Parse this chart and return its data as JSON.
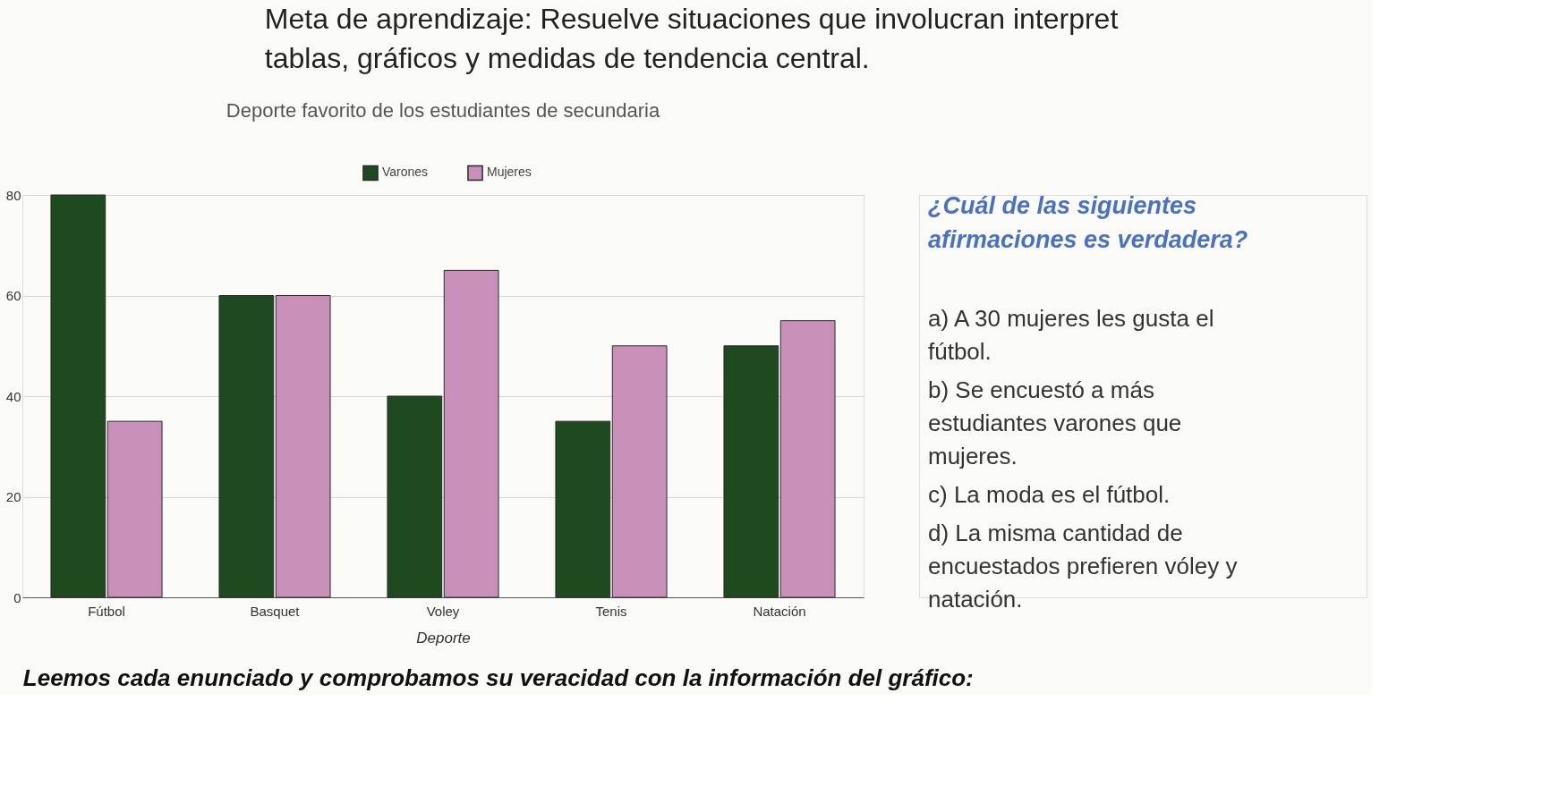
{
  "chart_data": {
    "type": "bar",
    "title": "Deporte favorito de los estudiantes de secundaria",
    "xlabel": "Deporte",
    "categories": [
      "Fútbol",
      "Basquet",
      "Voley",
      "Tenis",
      "Natación"
    ],
    "series": [
      {
        "name": "Varones",
        "color": "#1f4a1f",
        "values": [
          80,
          60,
          40,
          35,
          50
        ]
      },
      {
        "name": "Mujeres",
        "color": "#c890b8",
        "values": [
          35,
          60,
          65,
          50,
          55
        ]
      }
    ],
    "ylim": [
      0,
      80
    ],
    "yticks": [
      0,
      20,
      40,
      60,
      80
    ],
    "grid": "y",
    "legend": "top",
    "annotations": [
      "Meta de aprendizaje: Resuelve situaciones que involucran interpret tablas, gráficos y medidas de tendencia central.",
      "¿Cuál de las siguientes afirmaciones es verdadera?",
      "a) A 30 mujeres les gusta el fútbol.",
      "b) Se encuestó a más estudiantes varones que mujeres.",
      "c) La moda es el fútbol.",
      "d) La misma cantidad de encuestados prefieren vóley y natación.",
      "Leemos cada enunciado y comprobamos su veracidad con la información del gráfico:"
    ]
  }
}
